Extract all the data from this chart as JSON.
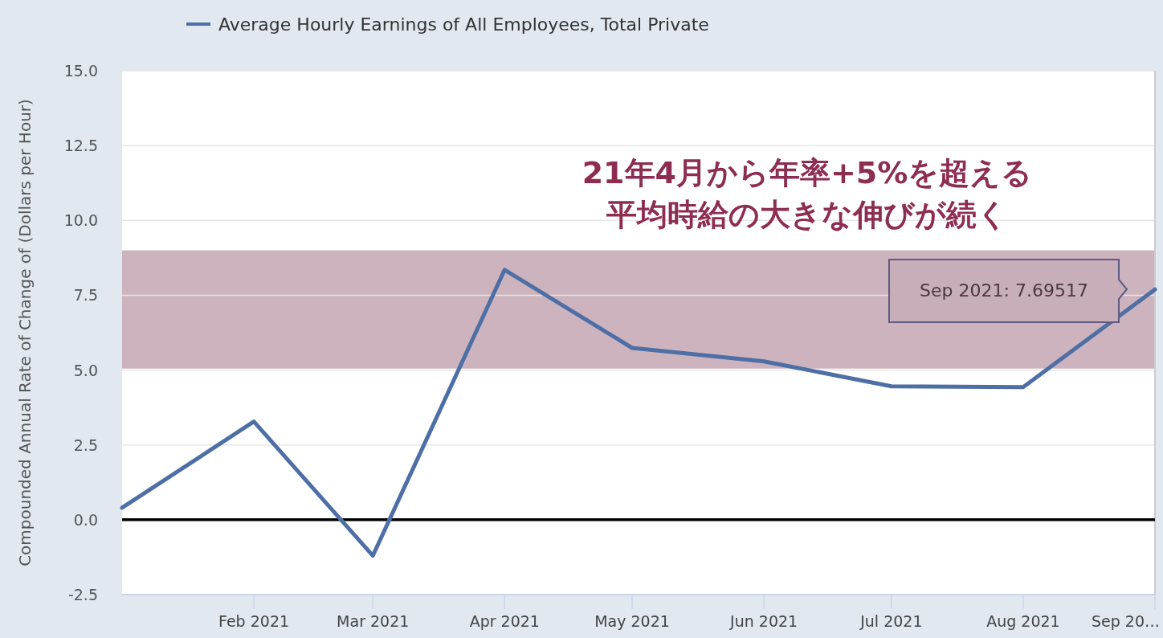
{
  "chart_data": {
    "type": "line",
    "ylabel": "Compounded Annual Rate of Change of (Dollars per Hour)",
    "x": [
      "2021-01",
      "2021-02",
      "2021-03",
      "2021-04",
      "2021-05",
      "2021-06",
      "2021-07",
      "2021-08",
      "2021-09"
    ],
    "series": [
      {
        "name": "Average Hourly Earnings of All Employees, Total Private",
        "color": "#4e6fa6",
        "values": [
          0.4,
          3.28,
          -1.2,
          8.35,
          5.74,
          5.29,
          4.46,
          4.43,
          7.69517
        ]
      }
    ],
    "xlim": [
      "2021-01",
      "2021-09"
    ],
    "xticks": [
      {
        "value": "2021-02",
        "label": "Feb 2021"
      },
      {
        "value": "2021-03",
        "label": "Mar 2021"
      },
      {
        "value": "2021-04",
        "label": "Apr 2021"
      },
      {
        "value": "2021-05",
        "label": "May 2021"
      },
      {
        "value": "2021-06",
        "label": "Jun 2021"
      },
      {
        "value": "2021-07",
        "label": "Jul 2021"
      },
      {
        "value": "2021-08",
        "label": "Aug 2021"
      },
      {
        "value": "2021-09",
        "label": "Sep 20…"
      }
    ],
    "ylim": [
      -2.5,
      15
    ],
    "yticks": [
      {
        "value": -2.5,
        "label": "-2.5"
      },
      {
        "value": 0,
        "label": "0.0"
      },
      {
        "value": 2.5,
        "label": "2.5"
      },
      {
        "value": 5,
        "label": "5.0"
      },
      {
        "value": 7.5,
        "label": "7.5"
      },
      {
        "value": 10,
        "label": "10.0"
      },
      {
        "value": 12.5,
        "label": "12.5"
      },
      {
        "value": 15,
        "label": "15.0"
      }
    ],
    "grid": "y",
    "legend": "top left",
    "bands": [
      {
        "axis": "y",
        "from": 5.05,
        "to": 9.0,
        "color": "#cdb3bd"
      }
    ],
    "ref_lines": [
      {
        "axis": "y",
        "value": 0,
        "color": "#000000"
      }
    ],
    "annotations": [
      "21年4月から年率+5%を超える",
      "平均時給の大きな伸びが続く",
      "Sep 2021: 7.69517"
    ]
  }
}
